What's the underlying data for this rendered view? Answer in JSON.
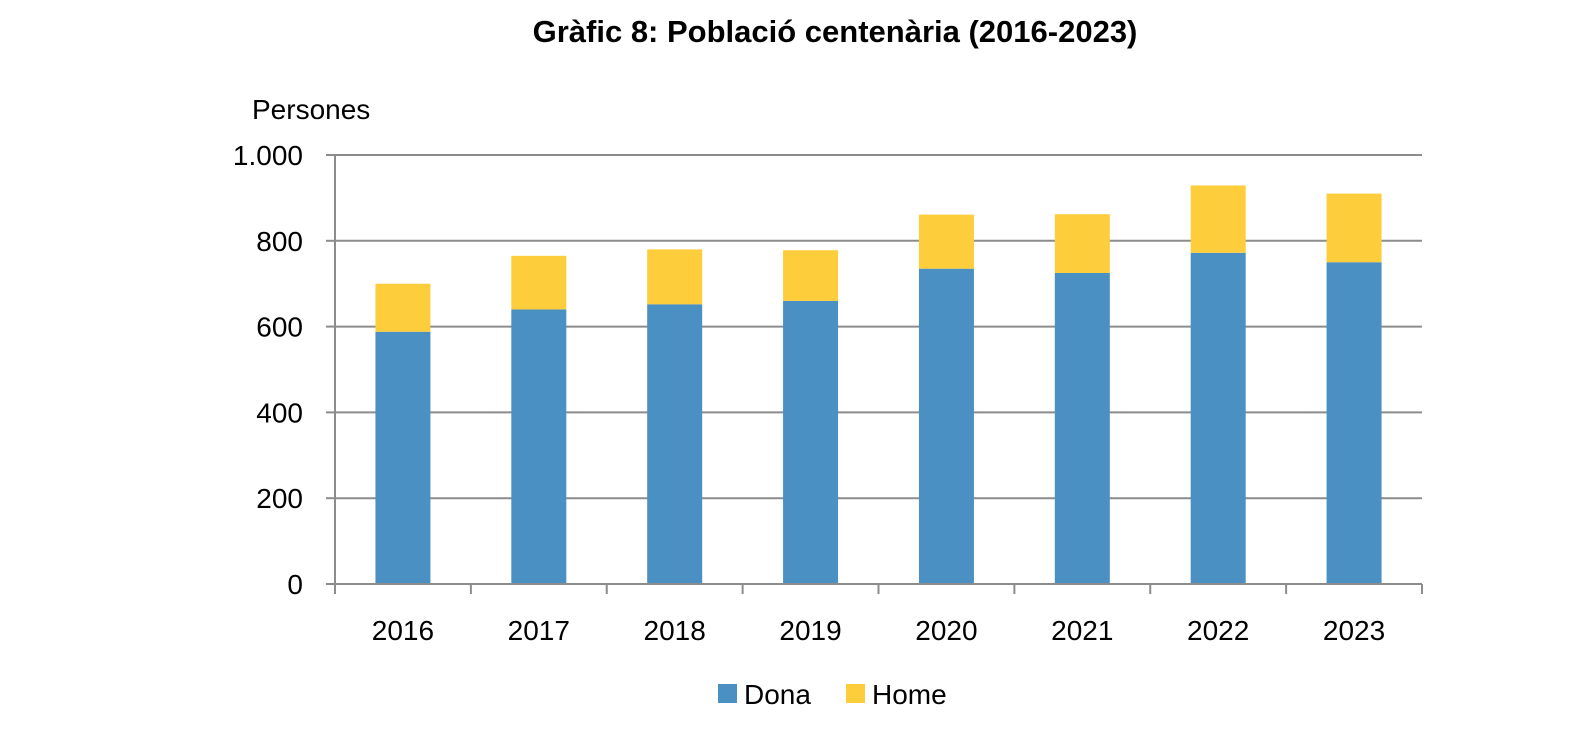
{
  "chart_data": {
    "type": "bar",
    "stacked": true,
    "title": "Gràfic 8: Població centenària (2016-2023)",
    "ylabel": "Persones",
    "xlabel": "",
    "categories": [
      "2016",
      "2017",
      "2018",
      "2019",
      "2020",
      "2021",
      "2022",
      "2023"
    ],
    "series": [
      {
        "name": "Dona",
        "color": "#4A90C2",
        "values": [
          588,
          640,
          652,
          660,
          735,
          725,
          772,
          750
        ]
      },
      {
        "name": "Home",
        "color": "#FDCD3C",
        "values": [
          112,
          125,
          128,
          118,
          126,
          137,
          157,
          160
        ]
      }
    ],
    "ylim": [
      0,
      1000
    ],
    "yticks": [
      0,
      200,
      400,
      600,
      800,
      1000
    ],
    "ytick_labels": [
      "0",
      "200",
      "400",
      "600",
      "800",
      "1.000"
    ],
    "grid": true,
    "legend": "bottom"
  }
}
